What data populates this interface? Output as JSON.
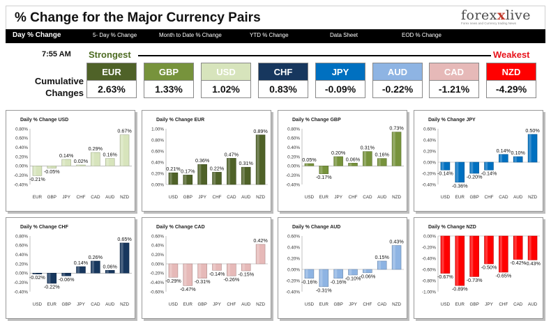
{
  "header": {
    "title": "% Change for the Major Currency Pairs",
    "logo_main": "forex",
    "logo_x": "x",
    "logo_end": "live",
    "logo_tagline": "Forex news and Currency trading News"
  },
  "nav": {
    "items": [
      "Day % Change",
      "5- Day % Change",
      "Month to Date % Change",
      "YTD % Change",
      "Data Sheet",
      "EOD % Change"
    ]
  },
  "ranking": {
    "time": "7:55 AM",
    "strongest_label": "Strongest",
    "weakest_label": "Weakest",
    "cumulative_label": "Cumulative Changes",
    "currencies": [
      {
        "name": "EUR",
        "value": "2.63%",
        "color": "#4f6228"
      },
      {
        "name": "GBP",
        "value": "1.33%",
        "color": "#77933c"
      },
      {
        "name": "USD",
        "value": "1.02%",
        "color": "#d7e4bc"
      },
      {
        "name": "CHF",
        "value": "0.83%",
        "color": "#17375e"
      },
      {
        "name": "JPY",
        "value": "-0.09%",
        "color": "#0070c0"
      },
      {
        "name": "AUD",
        "value": "-0.22%",
        "color": "#8eb4e3"
      },
      {
        "name": "CAD",
        "value": "-1.21%",
        "color": "#e6b9b8"
      },
      {
        "name": "NZD",
        "value": "-4.29%",
        "color": "#ff0000"
      }
    ]
  },
  "chart_data": [
    {
      "type": "bar",
      "title": "Daily % Change USD",
      "color": "#d7e4bc",
      "categories": [
        "EUR",
        "GBP",
        "JPY",
        "CHF",
        "CAD",
        "AUD",
        "NZD"
      ],
      "values": [
        -0.21,
        -0.05,
        0.14,
        0.02,
        0.29,
        0.16,
        0.67
      ],
      "labels": [
        "-0.21%",
        "-0.05%",
        "0.14%",
        "0.02%",
        "0.29%",
        "0.16%",
        "0.67%"
      ],
      "ylim": [
        -0.4,
        0.8
      ],
      "yticks": [
        "0.80%",
        "0.60%",
        "0.40%",
        "0.20%",
        "0.00%",
        "-0.20%",
        "-0.40%"
      ]
    },
    {
      "type": "bar",
      "title": "Daily % Change EUR",
      "color": "#4f6228",
      "categories": [
        "USD",
        "GBP",
        "JPY",
        "CHF",
        "CAD",
        "AUD",
        "NZD"
      ],
      "values": [
        0.21,
        0.17,
        0.36,
        0.22,
        0.47,
        0.31,
        0.89
      ],
      "labels": [
        "0.21%",
        "0.17%",
        "0.36%",
        "0.22%",
        "0.47%",
        "0.31%",
        "0.89%"
      ],
      "ylim": [
        0.0,
        1.0
      ],
      "yticks": [
        "1.00%",
        "0.80%",
        "0.60%",
        "0.40%",
        "0.20%",
        "0.00%"
      ]
    },
    {
      "type": "bar",
      "title": "Daily % Change GBP",
      "color": "#77933c",
      "categories": [
        "USD",
        "EUR",
        "JPY",
        "CHF",
        "CAD",
        "AUD",
        "NZD"
      ],
      "values": [
        0.05,
        -0.17,
        0.2,
        0.06,
        0.31,
        0.16,
        0.73
      ],
      "labels": [
        "0.05%",
        "-0.17%",
        "0.20%",
        "0.06%",
        "0.31%",
        "0.16%",
        "0.73%"
      ],
      "ylim": [
        -0.4,
        0.8
      ],
      "yticks": [
        "0.80%",
        "0.60%",
        "0.40%",
        "0.20%",
        "0.00%",
        "-0.20%",
        "-0.40%"
      ]
    },
    {
      "type": "bar",
      "title": "Daily % Change JPY",
      "color": "#0070c0",
      "categories": [
        "USD",
        "EUR",
        "GBP",
        "CHF",
        "CAD",
        "AUD",
        "NZD"
      ],
      "values": [
        -0.14,
        -0.36,
        -0.2,
        -0.14,
        0.14,
        0.1,
        0.5
      ],
      "labels": [
        "-0.14%",
        "-0.36%",
        "-0.20%",
        "-0.14%",
        "0.14%",
        "0.10%",
        "0.50%"
      ],
      "ylim": [
        -0.4,
        0.6
      ],
      "yticks": [
        "0.60%",
        "0.40%",
        "0.20%",
        "0.00%",
        "-0.20%",
        "-0.40%"
      ]
    },
    {
      "type": "bar",
      "title": "Daily % Change CHF",
      "color": "#17375e",
      "categories": [
        "USD",
        "EUR",
        "GBP",
        "JPY",
        "CAD",
        "AUD",
        "NZD"
      ],
      "values": [
        -0.02,
        -0.22,
        -0.06,
        0.14,
        0.26,
        0.06,
        0.65
      ],
      "labels": [
        "-0.02%",
        "-0.22%",
        "-0.06%",
        "0.14%",
        "0.26%",
        "0.06%",
        "0.65%"
      ],
      "ylim": [
        -0.4,
        0.8
      ],
      "yticks": [
        "0.80%",
        "0.60%",
        "0.40%",
        "0.20%",
        "0.00%",
        "-0.20%",
        "-0.40%"
      ]
    },
    {
      "type": "bar",
      "title": "Daily % Change CAD",
      "color": "#e6b9b8",
      "categories": [
        "USD",
        "EUR",
        "GBP",
        "JPY",
        "CHF",
        "AUD",
        "NZD"
      ],
      "values": [
        -0.29,
        -0.47,
        -0.31,
        -0.14,
        -0.26,
        -0.15,
        0.42
      ],
      "labels": [
        "-0.29%",
        "-0.47%",
        "-0.31%",
        "-0.14%",
        "-0.26%",
        "-0.15%",
        "0.42%"
      ],
      "ylim": [
        -0.6,
        0.6
      ],
      "yticks": [
        "0.60%",
        "0.40%",
        "0.20%",
        "0.00%",
        "-0.20%",
        "-0.40%",
        "-0.60%"
      ]
    },
    {
      "type": "bar",
      "title": "Daily % Change AUD",
      "color": "#8eb4e3",
      "categories": [
        "USD",
        "EUR",
        "GBP",
        "JPY",
        "CHF",
        "CAD",
        "NZD"
      ],
      "values": [
        -0.16,
        -0.31,
        -0.16,
        -0.1,
        -0.06,
        0.15,
        0.43
      ],
      "labels": [
        "-0.16%",
        "-0.31%",
        "-0.16%",
        "-0.10%",
        "-0.06%",
        "0.15%",
        "0.43%"
      ],
      "ylim": [
        -0.4,
        0.6
      ],
      "yticks": [
        "0.60%",
        "0.40%",
        "0.20%",
        "0.00%",
        "-0.20%",
        "-0.40%"
      ]
    },
    {
      "type": "bar",
      "title": "Daily % Change NZD",
      "color": "#ff0000",
      "categories": [
        "USD",
        "EUR",
        "GBP",
        "JPY",
        "CHF",
        "CAD",
        "AUD"
      ],
      "values": [
        -0.67,
        -0.89,
        -0.73,
        -0.5,
        -0.65,
        -0.42,
        -0.43
      ],
      "labels": [
        "-0.67%",
        "-0.89%",
        "-0.73%",
        "-0.50%",
        "-0.65%",
        "-0.42%",
        "-0.43%"
      ],
      "ylim": [
        -1.0,
        0.0
      ],
      "yticks": [
        "0.00%",
        "-0.20%",
        "-0.40%",
        "-0.60%",
        "-0.80%",
        "-1.00%"
      ]
    }
  ]
}
